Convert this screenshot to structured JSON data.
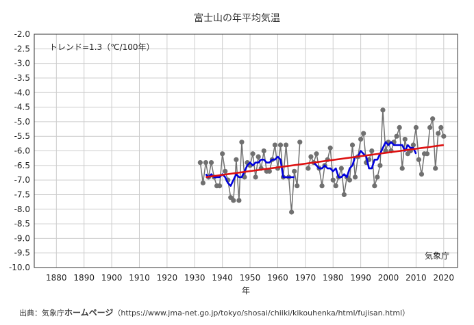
{
  "page_title": "富士山の年平均気温",
  "source": {
    "prefix": "出典：気象庁",
    "homepage": "ホームページ",
    "url": "（https://www.jma-net.go.jp/tokyo/shosai/chiiki/kikouhenka/html/fujisan.html）"
  },
  "chart_data": {
    "type": "line",
    "title": "富士山の年平均気温",
    "xlabel": "年",
    "ylabel": "",
    "xlim": [
      1872,
      2025
    ],
    "ylim": [
      -10.0,
      -2.0
    ],
    "x_ticks": [
      1880,
      1890,
      1900,
      1910,
      1920,
      1930,
      1940,
      1950,
      1960,
      1970,
      1980,
      1990,
      2000,
      2010,
      2020
    ],
    "y_ticks": [
      -2.0,
      -2.5,
      -3.0,
      -3.5,
      -4.0,
      -4.5,
      -5.0,
      -5.5,
      -6.0,
      -6.5,
      -7.0,
      -7.5,
      -8.0,
      -8.5,
      -9.0,
      -9.5,
      -10.0
    ],
    "grid": true,
    "annotations": {
      "trend_text": "トレンド=1.3（℃/100年）",
      "agency": "気象庁"
    },
    "colors": {
      "annual": "#707070",
      "annual_marker": "#707070",
      "moving_average": "#0000dd",
      "trend": "#dd1111",
      "grid": "#cccccc"
    },
    "series": [
      {
        "kind": "annual",
        "segments": [
          {
            "x": [
              1932,
              1933,
              1934,
              1935,
              1936,
              1937,
              1938,
              1939,
              1940,
              1941,
              1942,
              1943,
              1944,
              1945,
              1946,
              1947,
              1948,
              1949,
              1950,
              1951,
              1952,
              1953,
              1954,
              1955,
              1956,
              1957,
              1958,
              1959,
              1960,
              1961,
              1962,
              1963,
              1964,
              1965,
              1966,
              1967,
              1968
            ],
            "y": [
              -6.4,
              -7.1,
              -6.4,
              -6.9,
              -6.4,
              -6.9,
              -7.2,
              -7.2,
              -6.1,
              -6.7,
              -7.0,
              -7.6,
              -7.7,
              -6.3,
              -7.7,
              -5.7,
              -6.9,
              -6.4,
              -6.5,
              -6.1,
              -6.9,
              -6.2,
              -6.6,
              -6.0,
              -6.7,
              -6.7,
              -6.3,
              -5.8,
              -6.6,
              -5.8,
              -6.9,
              -5.8,
              -6.9,
              -8.1,
              -6.7,
              -7.2,
              -5.7
            ]
          },
          {
            "x": [
              1971,
              1972,
              1973,
              1974,
              1975,
              1976,
              1977,
              1978,
              1979,
              1980,
              1981,
              1982,
              1983,
              1984,
              1985,
              1986,
              1987,
              1988,
              1989,
              1990,
              1991,
              1992,
              1993,
              1994,
              1995,
              1996,
              1997,
              1998,
              1999,
              2000,
              2001,
              2002,
              2003,
              2004,
              2005,
              2006,
              2007,
              2008,
              2009,
              2010,
              2011,
              2012,
              2013,
              2014,
              2015,
              2016,
              2017,
              2018,
              2019,
              2020
            ],
            "y": [
              -6.6,
              -6.2,
              -6.4,
              -6.1,
              -6.6,
              -7.2,
              -6.5,
              -6.3,
              -5.9,
              -7.0,
              -7.2,
              -6.9,
              -6.6,
              -7.5,
              -6.9,
              -7.0,
              -5.8,
              -6.9,
              -6.2,
              -5.6,
              -5.4,
              -6.4,
              -6.3,
              -6.0,
              -7.2,
              -6.9,
              -6.5,
              -4.6,
              -6.0,
              -5.7,
              -6.0,
              -5.7,
              -5.5,
              -5.2,
              -6.6,
              -5.6,
              -6.1,
              -6.0,
              -5.8,
              -5.2,
              -6.3,
              -6.8,
              -6.1,
              -6.1,
              -5.2,
              -4.9,
              -6.6,
              -5.4,
              -5.2,
              -5.5
            ]
          }
        ]
      },
      {
        "kind": "moving_average",
        "segments": [
          {
            "x": [
              1934,
              1935,
              1936,
              1937,
              1938,
              1939,
              1940,
              1941,
              1942,
              1943,
              1944,
              1945,
              1946,
              1947,
              1948,
              1949,
              1950,
              1951,
              1952,
              1953,
              1954,
              1955,
              1956,
              1957,
              1958,
              1959,
              1960,
              1961,
              1962,
              1963,
              1964,
              1965,
              1966
            ],
            "y": [
              -6.8,
              -6.9,
              -6.8,
              -6.9,
              -6.9,
              -6.9,
              -6.8,
              -6.9,
              -7.1,
              -7.2,
              -7.0,
              -6.8,
              -6.9,
              -6.9,
              -6.7,
              -6.5,
              -6.4,
              -6.5,
              -6.4,
              -6.4,
              -6.3,
              -6.3,
              -6.4,
              -6.4,
              -6.3,
              -6.3,
              -6.2,
              -6.3,
              -6.9,
              -6.9,
              -6.9,
              -6.9,
              -6.9
            ]
          },
          {
            "x": [
              1973,
              1974,
              1975,
              1976,
              1977,
              1978,
              1979,
              1980,
              1981,
              1982,
              1983,
              1984,
              1985,
              1986,
              1987,
              1988,
              1989,
              1990,
              1991,
              1992,
              1993,
              1994,
              1995,
              1996,
              1997,
              1998,
              1999,
              2000,
              2001,
              2002,
              2003,
              2004,
              2005,
              2006,
              2007,
              2008,
              2009,
              2010
            ],
            "y": [
              -6.4,
              -6.5,
              -6.6,
              -6.6,
              -6.5,
              -6.6,
              -6.6,
              -6.7,
              -6.6,
              -6.9,
              -6.9,
              -6.8,
              -6.9,
              -6.6,
              -6.5,
              -6.2,
              -6.2,
              -6.0,
              -6.1,
              -6.2,
              -6.6,
              -6.6,
              -6.3,
              -6.3,
              -6.1,
              -5.9,
              -5.7,
              -5.8,
              -5.7,
              -5.8,
              -5.8,
              -5.8,
              -5.8,
              -6.0,
              -5.8,
              -5.9,
              -5.9,
              -6.1
            ]
          }
        ]
      },
      {
        "kind": "trend",
        "x": [
          1934,
          2020
        ],
        "y": [
          -6.9,
          -5.8
        ]
      }
    ]
  }
}
